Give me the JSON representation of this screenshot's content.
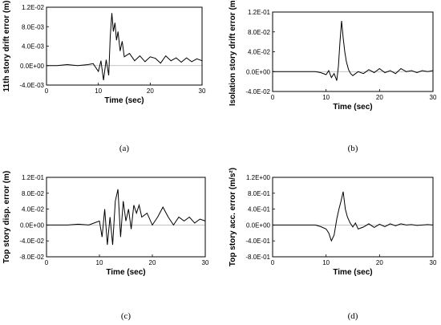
{
  "chart_data": [
    {
      "type": "line",
      "caption": "(a)",
      "xlabel": "Time (sec)",
      "ylabel": "11th story drift error (m)",
      "xlim": [
        0,
        30
      ],
      "ylim": [
        -0.004,
        0.012
      ],
      "xticks": [
        "0",
        "10",
        "20",
        "30"
      ],
      "yticks": [
        "-4.0E-03",
        "0.0E+00",
        "4.0E-03",
        "8.0E-03",
        "1.2E-02"
      ],
      "series": [
        {
          "x": [
            0,
            2,
            4,
            6,
            8,
            9,
            10,
            10.5,
            11,
            11.5,
            12,
            12.3,
            12.6,
            12.9,
            13.2,
            13.5,
            13.8,
            14.2,
            14.6,
            15,
            16,
            17,
            18,
            19,
            20,
            21,
            22,
            23,
            24,
            25,
            26,
            27,
            28,
            29,
            30
          ],
          "values": [
            0,
            0,
            0.0002,
            0,
            0.0002,
            0.0004,
            -0.0012,
            0.001,
            -0.003,
            0.0012,
            -0.002,
            0.006,
            0.0108,
            0.007,
            0.0088,
            0.0052,
            0.007,
            0.003,
            0.005,
            0.0018,
            0.0025,
            0.001,
            0.002,
            0.0008,
            0.0018,
            0.0015,
            0.0005,
            0.002,
            0.001,
            0.0016,
            0.0007,
            0.0016,
            0.0008,
            0.0014,
            0.001
          ]
        }
      ]
    },
    {
      "type": "line",
      "caption": "(b)",
      "xlabel": "Time (sec)",
      "ylabel": "Isolation story drift error (m)",
      "xlim": [
        0,
        30
      ],
      "ylim": [
        -0.04,
        0.1
      ],
      "xticks": [
        "0",
        "10",
        "20",
        "30"
      ],
      "yticks": [
        "-4.0E-02",
        "0.0E+00",
        "4.0E-02",
        "8.0E-02",
        "1.2E-01"
      ],
      "series": [
        {
          "x": [
            0,
            2,
            4,
            6,
            8,
            9,
            10,
            10.5,
            11,
            11.5,
            12,
            12.3,
            12.6,
            12.9,
            13.2,
            13.5,
            13.8,
            14.2,
            14.6,
            15,
            16,
            17,
            18,
            19,
            20,
            21,
            22,
            23,
            24,
            25,
            26,
            27,
            28,
            29,
            30
          ],
          "values": [
            0,
            0,
            0,
            0,
            0,
            -0.002,
            -0.006,
            0.002,
            -0.012,
            -0.004,
            -0.018,
            0.01,
            0.06,
            0.102,
            0.068,
            0.04,
            0.02,
            0.004,
            -0.004,
            -0.008,
            0,
            -0.004,
            0.004,
            -0.002,
            0.006,
            -0.002,
            0.002,
            -0.004,
            0.006,
            0,
            0.002,
            -0.002,
            0.002,
            0,
            0.002
          ]
        }
      ]
    },
    {
      "type": "line",
      "caption": "(c)",
      "xlabel": "Time (sec)",
      "ylabel": "Top story disp. error (m)",
      "xlim": [
        0,
        30
      ],
      "ylim": [
        -0.08,
        0.12
      ],
      "xticks": [
        "0",
        "10",
        "20",
        "30"
      ],
      "yticks": [
        "-8.0E-02",
        "-4.0E-02",
        "0.0E+00",
        "4.0E-02",
        "8.0E-02",
        "1.2E-01"
      ],
      "series": [
        {
          "x": [
            0,
            2,
            4,
            6,
            8,
            9,
            10,
            10.5,
            11,
            11.5,
            12,
            12.5,
            13,
            13.5,
            14,
            14.5,
            15,
            15.5,
            16,
            16.5,
            17,
            17.5,
            18,
            19,
            20,
            21,
            22,
            23,
            24,
            25,
            26,
            27,
            28,
            29,
            30
          ],
          "values": [
            0,
            0,
            0,
            0.002,
            0,
            0.005,
            0.01,
            -0.03,
            0.04,
            -0.05,
            0.02,
            -0.05,
            0.06,
            0.09,
            -0.03,
            0.06,
            0.01,
            0.04,
            -0.01,
            0.05,
            0.03,
            0.05,
            0.02,
            0.03,
            0,
            0.02,
            0.045,
            0.02,
            0,
            0.02,
            0.01,
            0.02,
            0.005,
            0.015,
            0.01
          ]
        }
      ]
    },
    {
      "type": "line",
      "caption": "(d)",
      "xlabel": "Time (sec)",
      "ylabel": "Top story acc. error (m/s²)",
      "xlim": [
        0,
        30
      ],
      "ylim": [
        -0.8,
        1.2
      ],
      "xticks": [
        "0",
        "10",
        "20",
        "30"
      ],
      "yticks": [
        "-8.0E-01",
        "-4.0E-01",
        "0.0E+00",
        "4.0E-01",
        "8.0E-01",
        "1.2E+00"
      ],
      "series": [
        {
          "x": [
            0,
            2,
            4,
            6,
            8,
            9,
            10,
            10.5,
            11,
            11.5,
            12,
            12.4,
            12.8,
            13.2,
            13.6,
            14,
            14.5,
            15,
            15.5,
            16,
            17,
            18,
            19,
            20,
            21,
            22,
            23,
            24,
            25,
            26,
            27,
            28,
            29,
            30
          ],
          "values": [
            0,
            0,
            0,
            0,
            0,
            -0.04,
            -0.1,
            -0.2,
            -0.4,
            -0.25,
            0.15,
            0.4,
            0.6,
            0.84,
            0.4,
            0.2,
            0.05,
            -0.05,
            0.05,
            -0.1,
            -0.05,
            0.03,
            -0.06,
            0.02,
            -0.04,
            0.03,
            -0.02,
            0.03,
            0,
            0.01,
            -0.01,
            0,
            0.01,
            0
          ]
        }
      ]
    }
  ]
}
